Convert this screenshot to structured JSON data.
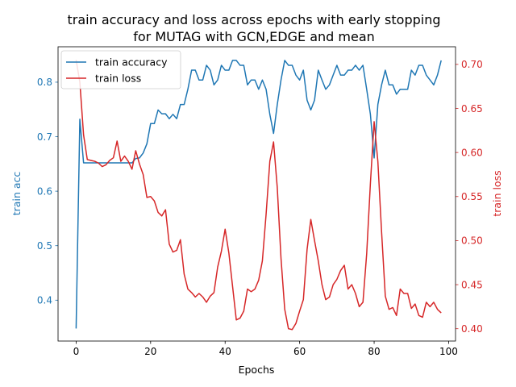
{
  "chart_data": {
    "type": "line",
    "title_line1": "train accuracy and loss across epochs with early stopping",
    "title_line2": "for MUTAG with GCN,EDGE and mean",
    "xlabel": "Epochs",
    "ylabel_left": "train acc",
    "ylabel_right": "train loss",
    "xlim": [
      -4.85,
      101.85
    ],
    "ylim_left": [
      0.325,
      0.865
    ],
    "ylim_right": [
      0.386,
      0.72
    ],
    "x_ticks": [
      0,
      20,
      40,
      60,
      80,
      100
    ],
    "y_ticks_left": [
      0.4,
      0.5,
      0.6,
      0.7,
      0.8
    ],
    "y_ticks_right": [
      0.4,
      0.45,
      0.5,
      0.55,
      0.6,
      0.65,
      0.7
    ],
    "legend_position": "top-left",
    "colors": {
      "accuracy": "#1f77b4",
      "loss": "#d62728",
      "axis": "#000000"
    },
    "series": [
      {
        "name": "train accuracy",
        "axis": "left",
        "values": [
          0.348,
          0.732,
          0.652,
          0.652,
          0.652,
          0.652,
          0.652,
          0.652,
          0.652,
          0.652,
          0.652,
          0.652,
          0.652,
          0.652,
          0.652,
          0.652,
          0.66,
          0.661,
          0.67,
          0.687,
          0.724,
          0.724,
          0.749,
          0.742,
          0.742,
          0.733,
          0.741,
          0.733,
          0.759,
          0.759,
          0.787,
          0.822,
          0.822,
          0.804,
          0.804,
          0.831,
          0.822,
          0.795,
          0.804,
          0.831,
          0.822,
          0.822,
          0.84,
          0.84,
          0.831,
          0.831,
          0.795,
          0.804,
          0.804,
          0.787,
          0.804,
          0.787,
          0.741,
          0.706,
          0.759,
          0.804,
          0.84,
          0.831,
          0.831,
          0.813,
          0.804,
          0.822,
          0.767,
          0.749,
          0.767,
          0.822,
          0.804,
          0.787,
          0.795,
          0.813,
          0.831,
          0.813,
          0.813,
          0.822,
          0.822,
          0.831,
          0.822,
          0.831,
          0.787,
          0.741,
          0.661,
          0.759,
          0.795,
          0.822,
          0.795,
          0.795,
          0.778,
          0.787,
          0.787,
          0.787,
          0.822,
          0.813,
          0.831,
          0.831,
          0.813,
          0.804,
          0.795,
          0.813,
          0.84
        ]
      },
      {
        "name": "train loss",
        "axis": "right",
        "values": [
          0.705,
          0.68,
          0.62,
          0.592,
          0.591,
          0.59,
          0.588,
          0.584,
          0.586,
          0.591,
          0.594,
          0.613,
          0.59,
          0.596,
          0.59,
          0.581,
          0.602,
          0.587,
          0.575,
          0.549,
          0.55,
          0.545,
          0.532,
          0.528,
          0.535,
          0.496,
          0.487,
          0.489,
          0.501,
          0.462,
          0.445,
          0.441,
          0.436,
          0.44,
          0.436,
          0.43,
          0.437,
          0.441,
          0.47,
          0.488,
          0.513,
          0.486,
          0.448,
          0.41,
          0.412,
          0.42,
          0.445,
          0.442,
          0.445,
          0.455,
          0.477,
          0.53,
          0.59,
          0.612,
          0.56,
          0.48,
          0.422,
          0.4,
          0.399,
          0.406,
          0.42,
          0.433,
          0.49,
          0.524,
          0.5,
          0.477,
          0.45,
          0.433,
          0.436,
          0.45,
          0.456,
          0.466,
          0.472,
          0.445,
          0.45,
          0.44,
          0.425,
          0.43,
          0.485,
          0.565,
          0.635,
          0.59,
          0.51,
          0.437,
          0.422,
          0.424,
          0.415,
          0.445,
          0.44,
          0.44,
          0.423,
          0.428,
          0.415,
          0.413,
          0.43,
          0.425,
          0.43,
          0.422,
          0.418
        ]
      }
    ]
  }
}
